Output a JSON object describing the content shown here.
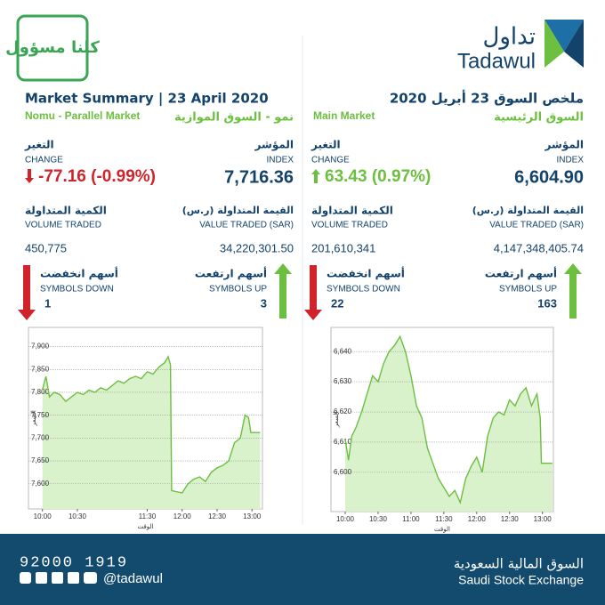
{
  "header": {
    "logo_ar": "تداول",
    "logo_en": "Tadawul",
    "badge": "كلنا مسؤول"
  },
  "panels": [
    {
      "title": "Market Summary | 23 April 2020",
      "subtitle_en": "Nomu - Parallel Market",
      "subtitle_ar": "نمو - السوق الموازية",
      "change": {
        "label_ar": "التغير",
        "label_en": "CHANGE",
        "value": "-77.16 (-0.99%)",
        "color": "#d0232a"
      },
      "index": {
        "label_ar": "المؤشر",
        "label_en": "INDEX",
        "value": "7,716.36"
      },
      "volume": {
        "label_ar": "الكمية المتداولة",
        "label_en": "VOLUME TRADED",
        "value": "450,775"
      },
      "value_traded": {
        "label_ar": "القيمة المتداولة (ر.س)",
        "label_en": "VALUE TRADED (SAR)",
        "value": "34,220,301.50"
      },
      "down": {
        "label_ar": "أسهم انخفضت",
        "label_en": "SYMBOLS DOWN",
        "value": "1"
      },
      "up": {
        "label_ar": "أسهم ارتفعت",
        "label_en": "SYMBOLS UP",
        "value": "3"
      }
    },
    {
      "title": "ملخص السوق 23 أبريل 2020",
      "subtitle_en": "Main Market",
      "subtitle_ar": "السوق الرئيسية",
      "change": {
        "label_ar": "التغير",
        "label_en": "CHANGE",
        "value": "63.43 (0.97%)",
        "color": "#6cbf3f"
      },
      "index": {
        "label_ar": "المؤشر",
        "label_en": "INDEX",
        "value": "6,604.90"
      },
      "volume": {
        "label_ar": "الكمية المتداولة",
        "label_en": "VOLUME TRADED",
        "value": "201,610,341"
      },
      "value_traded": {
        "label_ar": "القيمة المتداولة (ر.س)",
        "label_en": "VALUE TRADED (SAR)",
        "value": "4,147,348,405.74"
      },
      "down": {
        "label_ar": "أسهم انخفضت",
        "label_en": "SYMBOLS DOWN",
        "value": "22"
      },
      "up": {
        "label_ar": "أسهم ارتفعت",
        "label_en": "SYMBOLS UP",
        "value": "163"
      }
    }
  ],
  "chart_data": [
    {
      "type": "line",
      "x_label": "الوقت",
      "y_label": "السعر",
      "color": "#6cbf3f",
      "fill": "#d9f2cc",
      "grid": true,
      "x": [
        600,
        603,
        606,
        610,
        615,
        620,
        625,
        630,
        635,
        640,
        645,
        650,
        655,
        660,
        665,
        670,
        675,
        680,
        685,
        690,
        695,
        700,
        705,
        708,
        710,
        711,
        720,
        725,
        730,
        735,
        740,
        745,
        750,
        755,
        760,
        765,
        770,
        774,
        777,
        779,
        787
      ],
      "values": [
        7806,
        7835,
        7790,
        7800,
        7795,
        7780,
        7790,
        7800,
        7795,
        7805,
        7800,
        7810,
        7805,
        7815,
        7825,
        7820,
        7830,
        7835,
        7830,
        7845,
        7840,
        7855,
        7865,
        7878,
        7860,
        7585,
        7580,
        7600,
        7610,
        7615,
        7605,
        7625,
        7635,
        7640,
        7650,
        7690,
        7700,
        7750,
        7745,
        7712,
        7712
      ],
      "xlim": [
        588,
        789
      ],
      "ylim": [
        7545,
        7942
      ],
      "xticks": [
        {
          "value": 600,
          "label": "10:00"
        },
        {
          "value": 630,
          "label": "10:30"
        },
        {
          "value": 690,
          "label": "11:30"
        },
        {
          "value": 720,
          "label": "12:00"
        },
        {
          "value": 750,
          "label": "12:30"
        },
        {
          "value": 780,
          "label": "13:00"
        }
      ],
      "yticks": [
        {
          "value": 7600,
          "label": "7,600"
        },
        {
          "value": 7650,
          "label": "7,650"
        },
        {
          "value": 7700,
          "label": "7,700"
        },
        {
          "value": 7750,
          "label": "7,750"
        },
        {
          "value": 7800,
          "label": "7,800"
        },
        {
          "value": 7850,
          "label": "7,850"
        },
        {
          "value": 7900,
          "label": "7,900"
        }
      ]
    },
    {
      "type": "line",
      "x_label": "الوقت",
      "y_label": "السعر",
      "color": "#6cbf3f",
      "fill": "#d9f2cc",
      "grid": true,
      "x": [
        600,
        603,
        606,
        610,
        615,
        620,
        625,
        630,
        635,
        640,
        645,
        650,
        655,
        660,
        665,
        670,
        675,
        680,
        685,
        690,
        695,
        700,
        705,
        710,
        715,
        720,
        725,
        730,
        735,
        740,
        745,
        750,
        755,
        760,
        765,
        770,
        775,
        778,
        779,
        789
      ],
      "values": [
        6611,
        6604,
        6612,
        6615,
        6620,
        6626,
        6632,
        6630,
        6636,
        6640,
        6642,
        6645,
        6640,
        6632,
        6622,
        6618,
        6608,
        6603,
        6598,
        6595,
        6592,
        6594,
        6590,
        6598,
        6602,
        6605,
        6600,
        6612,
        6618,
        6620,
        6619,
        6624,
        6622,
        6626,
        6628,
        6622,
        6626,
        6618,
        6603,
        6603
      ],
      "xlim": [
        587,
        790
      ],
      "ylim": [
        6587,
        6648
      ],
      "xticks": [
        {
          "value": 600,
          "label": "10:00"
        },
        {
          "value": 630,
          "label": "10:30"
        },
        {
          "value": 660,
          "label": "11:00"
        },
        {
          "value": 690,
          "label": "11:30"
        },
        {
          "value": 720,
          "label": "12:00"
        },
        {
          "value": 750,
          "label": "12:30"
        },
        {
          "value": 780,
          "label": "13:00"
        }
      ],
      "yticks": [
        {
          "value": 6600,
          "label": "6,600"
        },
        {
          "value": 6610,
          "label": "6,610"
        },
        {
          "value": 6620,
          "label": "6,620"
        },
        {
          "value": 6630,
          "label": "6,630"
        },
        {
          "value": 6640,
          "label": "6,640"
        }
      ]
    }
  ],
  "footer": {
    "phone": "92000 1919",
    "handle": "@tadawul",
    "org_ar": "السوق المالية السعودية",
    "org_en": "Saudi Stock Exchange"
  }
}
